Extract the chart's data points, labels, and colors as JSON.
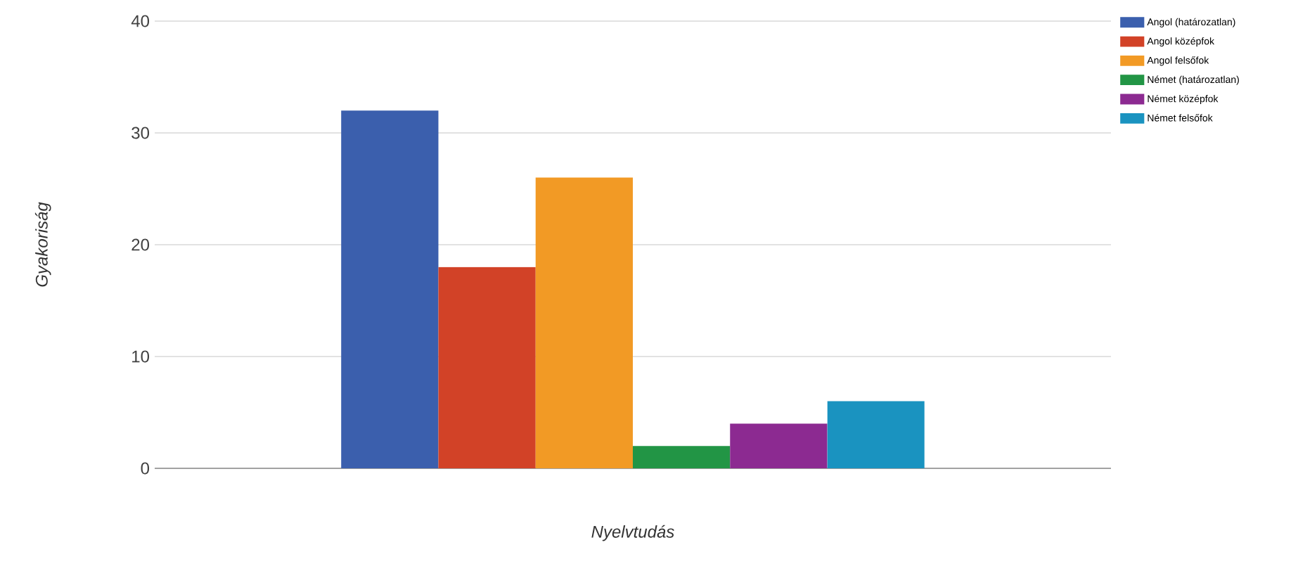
{
  "chart_data": {
    "type": "bar",
    "xlabel": "Nyelvtudás",
    "ylabel": "Gyakoriság",
    "categories": [
      null
    ],
    "series": [
      {
        "name": "Angol (határozatlan)",
        "color": "#3b5fad",
        "values": [
          32
        ]
      },
      {
        "name": "Angol középfok",
        "color": "#d24227",
        "values": [
          18
        ]
      },
      {
        "name": "Angol felsőfok",
        "color": "#f29a25",
        "values": [
          26
        ]
      },
      {
        "name": "Német (határozatlan)",
        "color": "#229545",
        "values": [
          2
        ]
      },
      {
        "name": "Német középfok",
        "color": "#8c2a91",
        "values": [
          4
        ]
      },
      {
        "name": "Német felsőfok",
        "color": "#1a93c0",
        "values": [
          6
        ]
      }
    ],
    "ylim": [
      0,
      40
    ],
    "yticks": [
      0,
      10,
      20,
      30,
      40
    ],
    "grid": "y",
    "legend": "top right"
  }
}
